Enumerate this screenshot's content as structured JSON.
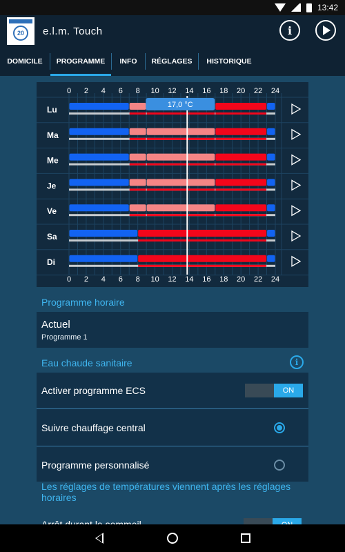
{
  "status": {
    "time": "13:42"
  },
  "app": {
    "title": "e.l.m. Touch",
    "logo_text": "20"
  },
  "tabs": [
    {
      "label": "DOMICILE"
    },
    {
      "label": "PROGRAMME"
    },
    {
      "label": "INFO"
    },
    {
      "label": "RÉGLAGES"
    },
    {
      "label": "HISTORIQUE"
    }
  ],
  "schedule": {
    "hours": [
      "0",
      "2",
      "4",
      "6",
      "8",
      "10",
      "12",
      "14",
      "16",
      "18",
      "20",
      "22",
      "24"
    ],
    "tooltip": "17,0 °C",
    "current_hour": 13.75,
    "colors": {
      "cold": "#1263f2",
      "mid": "#f58585",
      "hot": "#f3061b",
      "bg": "#122a3e"
    },
    "days": [
      {
        "label": "Lu",
        "segments": [
          [
            0,
            7,
            "cold"
          ],
          [
            7,
            9,
            "mid"
          ],
          [
            9,
            17,
            "mid"
          ],
          [
            17,
            23,
            "hot"
          ],
          [
            23,
            24,
            "cold"
          ]
        ]
      },
      {
        "label": "Ma",
        "segments": [
          [
            0,
            7,
            "cold"
          ],
          [
            7,
            9,
            "mid"
          ],
          [
            9,
            17,
            "mid"
          ],
          [
            17,
            23,
            "hot"
          ],
          [
            23,
            24,
            "cold"
          ]
        ]
      },
      {
        "label": "Me",
        "segments": [
          [
            0,
            7,
            "cold"
          ],
          [
            7,
            9,
            "mid"
          ],
          [
            9,
            17,
            "mid"
          ],
          [
            17,
            23,
            "hot"
          ],
          [
            23,
            24,
            "cold"
          ]
        ]
      },
      {
        "label": "Je",
        "segments": [
          [
            0,
            7,
            "cold"
          ],
          [
            7,
            9,
            "mid"
          ],
          [
            9,
            17,
            "mid"
          ],
          [
            17,
            23,
            "hot"
          ],
          [
            23,
            24,
            "cold"
          ]
        ]
      },
      {
        "label": "Ve",
        "segments": [
          [
            0,
            7,
            "cold"
          ],
          [
            7,
            9,
            "mid"
          ],
          [
            9,
            17,
            "mid"
          ],
          [
            17,
            23,
            "hot"
          ],
          [
            23,
            24,
            "cold"
          ]
        ]
      },
      {
        "label": "Sa",
        "segments": [
          [
            0,
            8,
            "cold"
          ],
          [
            8,
            23,
            "hot"
          ],
          [
            23,
            24,
            "cold"
          ]
        ]
      },
      {
        "label": "Di",
        "segments": [
          [
            0,
            8,
            "cold"
          ],
          [
            8,
            23,
            "hot"
          ],
          [
            23,
            24,
            "cold"
          ]
        ]
      }
    ]
  },
  "programme_horaire": {
    "section_title": "Programme horaire",
    "current_label": "Actuel",
    "current_value": "Programme 1"
  },
  "ecs": {
    "section_title": "Eau chaude sanitaire",
    "activer_label": "Activer programme ECS",
    "toggle_on": "ON",
    "suivre_label": "Suivre chauffage central",
    "perso_label": "Programme personnalisé",
    "note": "Les réglages de températures viennent après les réglages horaires",
    "arret_label": "Arrêt durant le sommeil",
    "arret_toggle": "ON"
  }
}
